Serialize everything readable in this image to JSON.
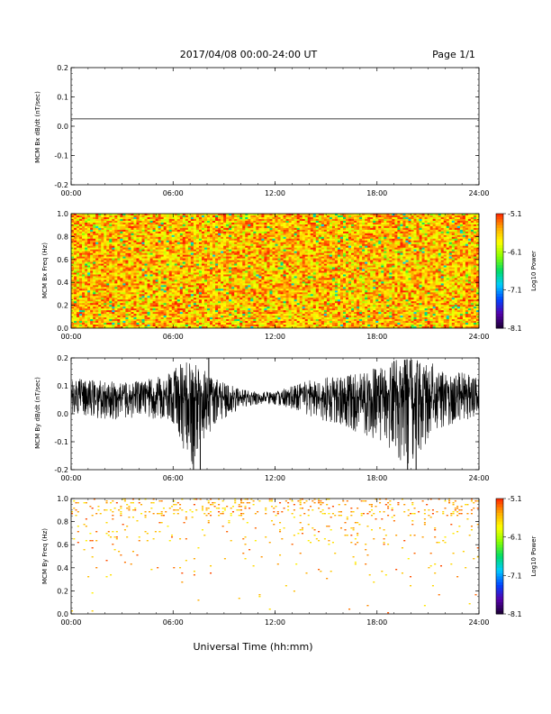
{
  "header": {
    "title": "2017/04/08  00:00-24:00 UT",
    "page": "Page 1/1"
  },
  "footer": {
    "xlabel": "Universal Time (hh:mm)"
  },
  "colors": {
    "spectrogram_scale": [
      "#1a0033",
      "#5500aa",
      "#0044ff",
      "#00ccff",
      "#00dd66",
      "#88ff00",
      "#ffff00",
      "#ffaa00",
      "#ff2200"
    ],
    "trace": "#000000",
    "axis": "#000000"
  },
  "chart_data": [
    {
      "type": "line",
      "ylabel": "MCM Bx dB/dt (nT/sec)",
      "x_ticks": [
        "00:00",
        "06:00",
        "12:00",
        "18:00",
        "24:00"
      ],
      "y_ticks": [
        "-0.2",
        "-0.1",
        "0.0",
        "0.1",
        "0.2"
      ],
      "xlim": [
        0,
        24
      ],
      "ylim": [
        -0.2,
        0.2
      ],
      "series": [
        {
          "x": [
            0,
            24
          ],
          "values": [
            0.025,
            0.025
          ]
        }
      ]
    },
    {
      "type": "heatmap",
      "ylabel": "MCM Bx Freq (Hz)",
      "x_ticks": [
        "00:00",
        "06:00",
        "12:00",
        "18:00",
        "24:00"
      ],
      "y_ticks": [
        "0.0",
        "0.2",
        "0.4",
        "0.6",
        "0.8",
        "1.0"
      ],
      "xlim": [
        0,
        24
      ],
      "ylim": [
        0,
        1.0
      ],
      "colorbar": {
        "label": "Log10 Power",
        "ticks": [
          "-5.1",
          "-6.1",
          "-7.1",
          "-8.1"
        ],
        "range": [
          -8.1,
          -5.1
        ]
      },
      "dominant_level": -5.6,
      "description_level_range": [
        -6.3,
        -5.1
      ]
    },
    {
      "type": "line",
      "ylabel": "MCM By dB/dt (nT/sec)",
      "x_ticks": [
        "00:00",
        "06:00",
        "12:00",
        "18:00",
        "24:00"
      ],
      "y_ticks": [
        "-0.2",
        "-0.1",
        "0.0",
        "0.1",
        "0.2"
      ],
      "xlim": [
        0,
        24
      ],
      "ylim": [
        -0.2,
        0.2
      ],
      "baseline": 0.06,
      "envelope": {
        "x": [
          0,
          1,
          2,
          3,
          4,
          5,
          6,
          7,
          8,
          9,
          10,
          11,
          12,
          13,
          14,
          15,
          16,
          17,
          18,
          19,
          20,
          21,
          22,
          23,
          24
        ],
        "upper": [
          0.13,
          0.12,
          0.12,
          0.11,
          0.12,
          0.13,
          0.16,
          0.2,
          0.15,
          0.11,
          0.09,
          0.08,
          0.08,
          0.1,
          0.12,
          0.13,
          0.14,
          0.15,
          0.17,
          0.2,
          0.2,
          0.19,
          0.16,
          0.15,
          0.14
        ],
        "lower": [
          0.0,
          -0.01,
          -0.02,
          -0.02,
          -0.02,
          -0.02,
          -0.03,
          -0.2,
          -0.08,
          -0.02,
          0.02,
          0.03,
          0.03,
          0.01,
          -0.02,
          -0.03,
          -0.05,
          -0.07,
          -0.1,
          -0.15,
          -0.2,
          -0.1,
          -0.05,
          -0.03,
          -0.02
        ]
      },
      "spikes": [
        {
          "x": 7.2,
          "y": -0.2
        },
        {
          "x": 7.6,
          "y": -0.2
        },
        {
          "x": 8.1,
          "y": 0.2
        },
        {
          "x": 19.8,
          "y": -0.2
        },
        {
          "x": 20.3,
          "y": -0.2
        }
      ]
    },
    {
      "type": "heatmap",
      "ylabel": "MCM By Freq (Hz)",
      "x_ticks": [
        "00:00",
        "06:00",
        "12:00",
        "18:00",
        "24:00"
      ],
      "y_ticks": [
        "0.0",
        "0.2",
        "0.4",
        "0.6",
        "0.8",
        "1.0"
      ],
      "xlim": [
        0,
        24
      ],
      "ylim": [
        0,
        1.0
      ],
      "colorbar": {
        "label": "Log10 Power",
        "ticks": [
          "-5.1",
          "-6.1",
          "-7.1",
          "-8.1"
        ],
        "range": [
          -8.1,
          -5.1
        ]
      },
      "dominant_level": -5.2,
      "sparse": true
    }
  ]
}
